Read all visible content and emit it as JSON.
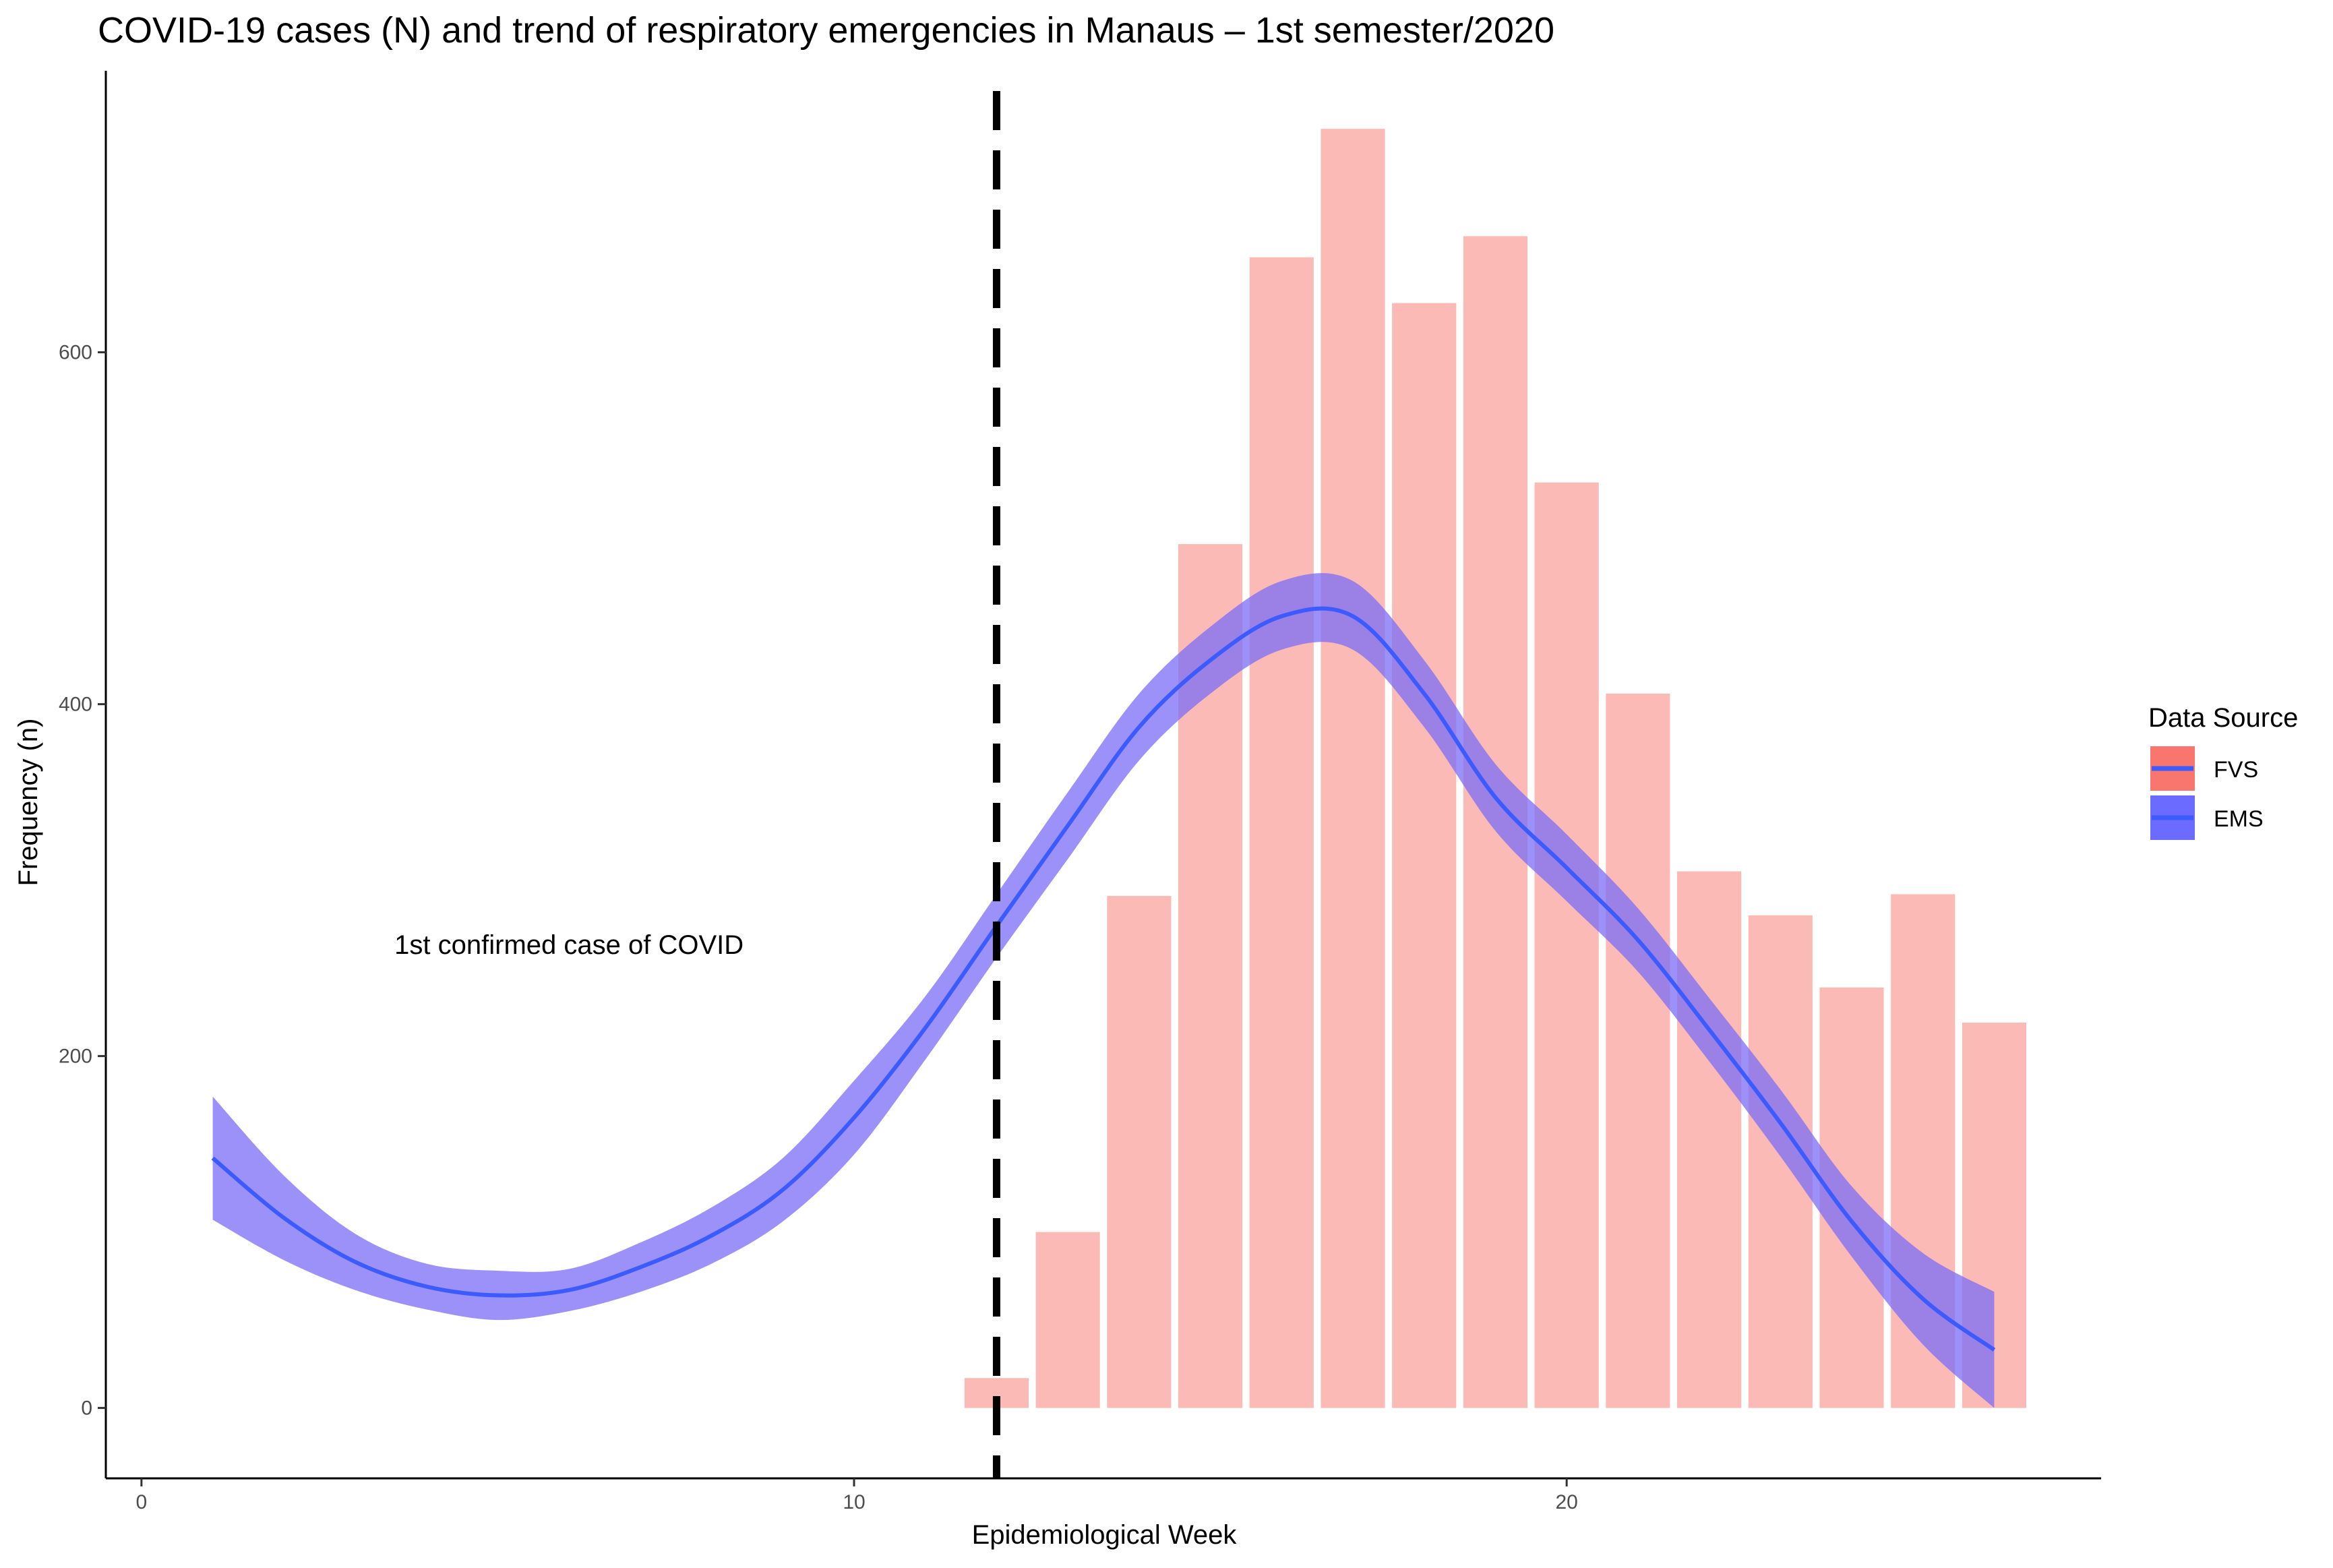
{
  "chart_data": {
    "type": "bar",
    "title": "COVID-19 cases (N) and trend of respiratory emergencies in Manaus – 1st semester/2020",
    "xlabel": "Epidemiological Week",
    "ylabel": "Frequency (n)",
    "xlim": [
      -0.5,
      27.5
    ],
    "ylim": [
      -40,
      760
    ],
    "x_ticks": [
      0,
      10,
      20
    ],
    "y_ticks": [
      0,
      200,
      400,
      600
    ],
    "series": [
      {
        "name": "FVS",
        "type": "bar",
        "color": "#f8766d",
        "x": [
          12,
          13,
          14,
          15,
          16,
          17,
          18,
          19,
          20,
          21,
          22,
          23,
          24,
          25,
          26
        ],
        "values": [
          17,
          100,
          291,
          491,
          654,
          727,
          628,
          666,
          526,
          406,
          305,
          280,
          239,
          292,
          219
        ]
      },
      {
        "name": "EMS",
        "type": "smooth",
        "color": "#3b5bff",
        "band_color": "#7b6cf6",
        "x": [
          1,
          2,
          3,
          4,
          5,
          6,
          7,
          8,
          9,
          10,
          11,
          12,
          13,
          14,
          15,
          16,
          17,
          18,
          19,
          20,
          21,
          22,
          23,
          24,
          25,
          26
        ],
        "values": [
          142,
          108,
          83,
          69,
          64,
          67,
          80,
          98,
          124,
          165,
          216,
          274,
          331,
          387,
          425,
          450,
          450,
          406,
          347,
          307,
          266,
          215,
          162,
          106,
          62,
          33
        ],
        "lower": [
          107,
          84,
          67,
          56,
          50,
          55,
          66,
          82,
          106,
          144,
          198,
          256,
          312,
          368,
          406,
          431,
          431,
          387,
          328,
          288,
          248,
          197,
          143,
          86,
          36,
          0
        ],
        "upper": [
          177,
          132,
          99,
          82,
          78,
          79,
          94,
          114,
          142,
          186,
          234,
          292,
          350,
          406,
          444,
          470,
          470,
          425,
          366,
          326,
          284,
          233,
          181,
          126,
          88,
          66
        ]
      }
    ],
    "vline": {
      "x": 12,
      "style": "dashed"
    },
    "annotations": [
      {
        "text": "1st confirmed case of COVID",
        "x": 6.0,
        "y": 258
      }
    ],
    "legend": {
      "title": "Data Source",
      "position": "right",
      "entries": [
        "FVS",
        "EMS"
      ]
    }
  }
}
